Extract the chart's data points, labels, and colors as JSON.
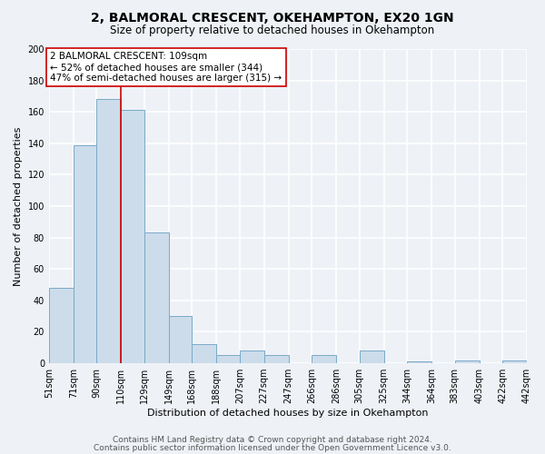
{
  "title": "2, BALMORAL CRESCENT, OKEHAMPTON, EX20 1GN",
  "subtitle": "Size of property relative to detached houses in Okehampton",
  "xlabel": "Distribution of detached houses by size in Okehampton",
  "ylabel": "Number of detached properties",
  "bin_edges": [
    51,
    71,
    90,
    110,
    129,
    149,
    168,
    188,
    207,
    227,
    247,
    266,
    286,
    305,
    325,
    344,
    364,
    383,
    403,
    422,
    442
  ],
  "bin_labels": [
    "51sqm",
    "71sqm",
    "90sqm",
    "110sqm",
    "129sqm",
    "149sqm",
    "168sqm",
    "188sqm",
    "207sqm",
    "227sqm",
    "247sqm",
    "266sqm",
    "286sqm",
    "305sqm",
    "325sqm",
    "344sqm",
    "364sqm",
    "383sqm",
    "403sqm",
    "422sqm",
    "442sqm"
  ],
  "bar_heights": [
    48,
    139,
    168,
    161,
    83,
    30,
    12,
    5,
    8,
    5,
    0,
    5,
    0,
    8,
    0,
    1,
    0,
    2,
    0,
    2
  ],
  "bar_color": "#ccdcea",
  "bar_edge_color": "#7aaac8",
  "vline_x": 110,
  "vline_color": "#cc0000",
  "annotation_title": "2 BALMORAL CRESCENT: 109sqm",
  "annotation_line1": "← 52% of detached houses are smaller (344)",
  "annotation_line2": "47% of semi-detached houses are larger (315) →",
  "annotation_box_color": "#ffffff",
  "annotation_box_edge_color": "#cc0000",
  "ylim": [
    0,
    200
  ],
  "yticks": [
    0,
    20,
    40,
    60,
    80,
    100,
    120,
    140,
    160,
    180,
    200
  ],
  "footer1": "Contains HM Land Registry data © Crown copyright and database right 2024.",
  "footer2": "Contains public sector information licensed under the Open Government Licence v3.0.",
  "background_color": "#eef2f7",
  "grid_color": "#ffffff",
  "title_fontsize": 10,
  "subtitle_fontsize": 8.5,
  "axis_label_fontsize": 8,
  "tick_fontsize": 7,
  "annotation_fontsize": 7.5,
  "footer_fontsize": 6.5
}
